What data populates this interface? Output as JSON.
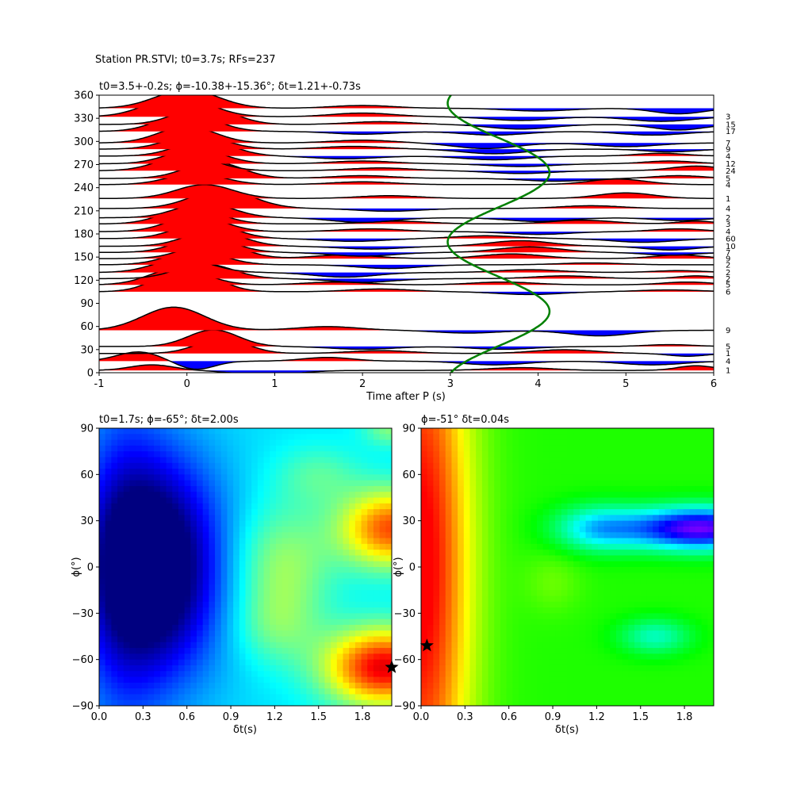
{
  "figure": {
    "suptitle": "Station PR.STVI; t0=3.7s; RFs=237"
  },
  "chart_data": [
    {
      "type": "line",
      "kind": "receiver-function-wiggles",
      "title": "t0=3.5+-0.2s; ϕ=-10.38+-15.36°; δt=1.21+-0.73s",
      "xlabel": "Time after P (s)",
      "ylabel": "",
      "xlim": [
        -1,
        6
      ],
      "ylim": [
        0,
        360
      ],
      "xticks": [
        -1,
        0,
        1,
        2,
        3,
        4,
        5,
        6
      ],
      "yticks": [
        0,
        30,
        60,
        90,
        120,
        150,
        180,
        210,
        240,
        270,
        300,
        330,
        360
      ],
      "positive_fill_color": "#ff0000",
      "negative_fill_color": "#0000ff",
      "trace_color": "#000000",
      "fit_curve_color": "#008000",
      "fit_curve": {
        "name": "",
        "center_time": 3.55,
        "amplitude": 0.58,
        "period_deg": 180,
        "phase_deg": -10.38
      },
      "traces": [
        {
          "baz": 3,
          "count": "1",
          "peaks": [
            [
              -0.4,
              0.6,
              0.35
            ],
            [
              0.9,
              -0.5,
              0.5
            ],
            [
              3.8,
              0.3,
              0.5
            ],
            [
              5.8,
              0.5,
              0.3
            ]
          ]
        },
        {
          "baz": 15,
          "count": "4",
          "peaks": [
            [
              -0.55,
              1.0,
              0.35
            ],
            [
              0.1,
              -0.9,
              0.3
            ],
            [
              1.6,
              0.4,
              0.4
            ],
            [
              3.5,
              -0.4,
              0.5
            ],
            [
              5.3,
              -0.4,
              0.5
            ]
          ]
        },
        {
          "baz": 25,
          "count": "1",
          "peaks": [
            [
              0.4,
              1.6,
              0.4
            ],
            [
              2.2,
              0.3,
              0.5
            ],
            [
              4.3,
              0.4,
              0.5
            ],
            [
              5.7,
              -0.3,
              0.3
            ]
          ]
        },
        {
          "baz": 34,
          "count": "5",
          "peaks": [
            [
              0.3,
              1.8,
              0.4
            ],
            [
              2.0,
              -0.3,
              0.5
            ],
            [
              3.6,
              -0.3,
              0.5
            ],
            [
              5.5,
              0.2,
              0.4
            ]
          ]
        },
        {
          "baz": 55,
          "count": "9",
          "peaks": [
            [
              -0.15,
              2.5,
              0.5
            ],
            [
              1.6,
              0.4,
              0.5
            ],
            [
              3.2,
              -0.3,
              0.5
            ],
            [
              4.7,
              -0.6,
              0.5
            ]
          ]
        },
        {
          "baz": 105,
          "count": "6",
          "peaks": [
            [
              0.0,
              2.6,
              0.45
            ],
            [
              2.2,
              0.3,
              0.5
            ],
            [
              3.9,
              -0.3,
              0.5
            ],
            [
              5.5,
              0.2,
              0.5
            ]
          ]
        },
        {
          "baz": 114,
          "count": "5",
          "peaks": [
            [
              -0.1,
              1.8,
              0.45
            ],
            [
              1.7,
              0.3,
              0.5
            ],
            [
              3.6,
              0.3,
              0.5
            ],
            [
              5.7,
              0.3,
              0.4
            ]
          ]
        },
        {
          "baz": 122,
          "count": "2",
          "peaks": [
            [
              0.2,
              1.6,
              0.45
            ],
            [
              2.0,
              -0.4,
              0.5
            ],
            [
              4.3,
              0.3,
              0.5
            ],
            [
              5.8,
              0.3,
              0.3
            ]
          ]
        },
        {
          "baz": 130,
          "count": "2",
          "peaks": [
            [
              -0.05,
              1.5,
              0.45
            ],
            [
              1.8,
              -0.5,
              0.5
            ],
            [
              3.9,
              0.3,
              0.5
            ],
            [
              5.6,
              0.2,
              0.4
            ]
          ]
        },
        {
          "baz": 140,
          "count": "2",
          "peaks": [
            [
              0.1,
              1.5,
              0.45
            ],
            [
              2.3,
              -0.4,
              0.5
            ],
            [
              4.6,
              0.2,
              0.5
            ]
          ]
        },
        {
          "baz": 148,
          "count": "9",
          "peaks": [
            [
              0.3,
              1.8,
              0.45
            ],
            [
              1.8,
              0.4,
              0.5
            ],
            [
              3.7,
              0.5,
              0.5
            ],
            [
              5.6,
              0.4,
              0.4
            ]
          ]
        },
        {
          "baz": 156,
          "count": "7",
          "peaks": [
            [
              0.2,
              1.7,
              0.45
            ],
            [
              2.0,
              -0.4,
              0.5
            ],
            [
              3.9,
              0.6,
              0.5
            ],
            [
              5.5,
              -0.3,
              0.4
            ]
          ]
        },
        {
          "baz": 164,
          "count": "10",
          "peaks": [
            [
              0.3,
              1.7,
              0.45
            ],
            [
              2.1,
              -0.3,
              0.5
            ],
            [
              3.8,
              0.6,
              0.5
            ],
            [
              5.5,
              -0.4,
              0.4
            ]
          ]
        },
        {
          "baz": 174,
          "count": "60",
          "peaks": [
            [
              0.2,
              1.8,
              0.45
            ],
            [
              1.9,
              -0.3,
              0.5
            ],
            [
              3.4,
              0.3,
              0.5
            ],
            [
              5.2,
              -0.4,
              0.5
            ]
          ]
        },
        {
          "baz": 183,
          "count": "4",
          "peaks": [
            [
              0.1,
              1.7,
              0.45
            ],
            [
              2.1,
              0.3,
              0.5
            ],
            [
              4.0,
              -0.3,
              0.5
            ],
            [
              5.6,
              0.3,
              0.4
            ]
          ]
        },
        {
          "baz": 193,
          "count": "3",
          "peaks": [
            [
              0.05,
              1.8,
              0.45
            ],
            [
              2.4,
              0.3,
              0.5
            ],
            [
              4.5,
              0.4,
              0.5
            ],
            [
              5.8,
              0.3,
              0.3
            ]
          ]
        },
        {
          "baz": 201,
          "count": "2",
          "peaks": [
            [
              0.2,
              1.6,
              0.45
            ],
            [
              2.0,
              -0.5,
              0.5
            ],
            [
              4.0,
              -0.4,
              0.5
            ],
            [
              5.6,
              -0.3,
              0.4
            ]
          ]
        },
        {
          "baz": 213,
          "count": "4",
          "peaks": [
            [
              0.4,
              2.0,
              0.5
            ],
            [
              2.3,
              -0.3,
              0.5
            ],
            [
              4.6,
              0.3,
              0.5
            ]
          ]
        },
        {
          "baz": 226,
          "count": "1",
          "peaks": [
            [
              0.2,
              1.5,
              0.45
            ],
            [
              2.3,
              0.3,
              0.5
            ],
            [
              5.0,
              0.6,
              0.45
            ]
          ]
        },
        {
          "baz": 244,
          "count": "4",
          "peaks": [
            [
              0.1,
              1.2,
              0.45
            ],
            [
              2.0,
              0.3,
              0.5
            ],
            [
              4.9,
              0.6,
              0.45
            ]
          ]
        },
        {
          "baz": 252,
          "count": "5",
          "peaks": [
            [
              0.3,
              1.8,
              0.45
            ],
            [
              2.0,
              0.3,
              0.5
            ],
            [
              4.2,
              -0.3,
              0.5
            ],
            [
              5.6,
              0.3,
              0.4
            ]
          ]
        },
        {
          "baz": 262,
          "count": "24",
          "peaks": [
            [
              0.0,
              1.7,
              0.45
            ],
            [
              2.2,
              0.3,
              0.5
            ],
            [
              3.8,
              -0.3,
              0.5
            ],
            [
              5.8,
              0.5,
              0.4
            ]
          ]
        },
        {
          "baz": 271,
          "count": "12",
          "peaks": [
            [
              0.1,
              1.6,
              0.45
            ],
            [
              2.0,
              0.3,
              0.5
            ],
            [
              3.8,
              -0.3,
              0.5
            ],
            [
              5.5,
              0.3,
              0.4
            ]
          ]
        },
        {
          "baz": 281,
          "count": "4",
          "peaks": [
            [
              0.2,
              1.7,
              0.45
            ],
            [
              1.8,
              -0.3,
              0.5
            ],
            [
              3.5,
              -0.4,
              0.5
            ],
            [
              5.4,
              0.3,
              0.4
            ]
          ]
        },
        {
          "baz": 290,
          "count": "9",
          "peaks": [
            [
              0.1,
              1.6,
              0.45
            ],
            [
              1.9,
              0.3,
              0.5
            ],
            [
              3.5,
              -0.5,
              0.5
            ],
            [
              5.5,
              -0.3,
              0.4
            ]
          ]
        },
        {
          "baz": 298,
          "count": "7",
          "peaks": [
            [
              0.0,
              1.8,
              0.45
            ],
            [
              2.0,
              0.3,
              0.5
            ],
            [
              3.4,
              -0.6,
              0.5
            ],
            [
              5.0,
              -0.4,
              0.5
            ]
          ]
        },
        {
          "baz": 313,
          "count": "17",
          "peaks": [
            [
              0.0,
              2.0,
              0.45
            ],
            [
              2.0,
              -0.3,
              0.5
            ],
            [
              3.5,
              -0.4,
              0.5
            ],
            [
              5.3,
              -0.4,
              0.5
            ]
          ]
        },
        {
          "baz": 322,
          "count": "15",
          "peaks": [
            [
              0.2,
              2.0,
              0.45
            ],
            [
              2.2,
              0.3,
              0.5
            ],
            [
              3.8,
              -0.5,
              0.5
            ],
            [
              5.6,
              -0.6,
              0.4
            ]
          ]
        },
        {
          "baz": 332,
          "count": "3",
          "peaks": [
            [
              -0.1,
              2.2,
              0.5
            ],
            [
              2.0,
              0.4,
              0.5
            ],
            [
              3.8,
              -0.4,
              0.5
            ],
            [
              5.4,
              -0.5,
              0.5
            ]
          ]
        },
        {
          "baz": 343,
          "count": "",
          "peaks": [
            [
              0.0,
              2.0,
              0.5
            ],
            [
              2.0,
              0.3,
              0.5
            ],
            [
              4.0,
              -0.3,
              0.5
            ],
            [
              5.6,
              -0.6,
              0.4
            ]
          ]
        }
      ],
      "trace_scale_deg": 12
    },
    {
      "type": "heatmap",
      "title": "t0=1.7s; ϕ=-65°; δt=2.00s",
      "xlabel": "δt(s)",
      "ylabel": "ϕ(°)",
      "xlim": [
        0,
        2.0
      ],
      "ylim": [
        -90,
        90
      ],
      "xticks": [
        0.0,
        0.3,
        0.6,
        0.9,
        1.2,
        1.5,
        1.8
      ],
      "yticks": [
        -90,
        -60,
        -30,
        0,
        30,
        60,
        90
      ],
      "colormap": "jet",
      "best_fit": {
        "dt": 2.0,
        "phi": -65
      },
      "blobs": [
        {
          "dt": 0.4,
          "phi": 0,
          "sdt": 0.45,
          "sphi": 70,
          "amp": -0.45
        },
        {
          "dt": 0.15,
          "phi": 0,
          "sdt": 0.3,
          "sphi": 120,
          "amp": -0.15
        },
        {
          "dt": 2.0,
          "phi": 25,
          "sdt": 0.35,
          "sphi": 25,
          "amp": 0.45
        },
        {
          "dt": 1.95,
          "phi": -65,
          "sdt": 0.4,
          "sphi": 25,
          "amp": 0.55
        },
        {
          "dt": 1.25,
          "phi": 0,
          "sdt": 0.35,
          "sphi": 40,
          "amp": 0.18
        },
        {
          "dt": 1.5,
          "phi": 60,
          "sdt": 0.3,
          "sphi": 20,
          "amp": 0.1
        },
        {
          "dt": 1.2,
          "phi": -40,
          "sdt": 0.3,
          "sphi": 25,
          "amp": 0.1
        },
        {
          "dt": 2.0,
          "phi": 90,
          "sdt": 0.2,
          "sphi": 12,
          "amp": 0.15
        }
      ],
      "base_value": 0.35
    },
    {
      "type": "heatmap",
      "title": "ϕ=-51° δt=0.04s",
      "xlabel": "δt(s)",
      "ylabel": "ϕ(°)",
      "xlim": [
        0,
        2.0
      ],
      "ylim": [
        -90,
        90
      ],
      "xticks": [
        0.0,
        0.3,
        0.6,
        0.9,
        1.2,
        1.5,
        1.8
      ],
      "yticks": [
        -90,
        -60,
        -30,
        0,
        30,
        60,
        90
      ],
      "colormap": "hsv",
      "best_fit": {
        "dt": 0.04,
        "phi": -51
      },
      "blobs": [
        {
          "dt": 0.0,
          "phi": 0,
          "sdt": 0.35,
          "sphi": 200,
          "amp": -0.35
        },
        {
          "dt": 1.9,
          "phi": 25,
          "sdt": 0.5,
          "sphi": 14,
          "amp": 0.45
        },
        {
          "dt": 1.2,
          "phi": 25,
          "sdt": 0.3,
          "sphi": 15,
          "amp": 0.2
        },
        {
          "dt": 1.6,
          "phi": -45,
          "sdt": 0.25,
          "sphi": 12,
          "amp": 0.15
        },
        {
          "dt": 0.9,
          "phi": -10,
          "sdt": 0.2,
          "sphi": 20,
          "amp": -0.05
        }
      ],
      "base_value": 0.33
    }
  ]
}
